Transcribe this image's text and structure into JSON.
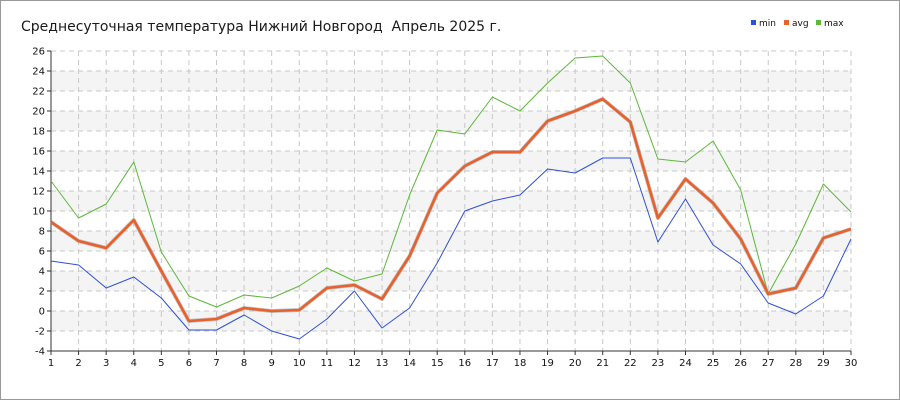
{
  "chart_data": {
    "type": "line",
    "title": "Среднесуточная температура Нижний Новгород  Апрель 2025 г.",
    "xlabel": "",
    "ylabel": "",
    "x": [
      1,
      2,
      3,
      4,
      5,
      6,
      7,
      8,
      9,
      10,
      11,
      12,
      13,
      14,
      15,
      16,
      17,
      18,
      19,
      20,
      21,
      22,
      23,
      24,
      25,
      26,
      27,
      28,
      29,
      30
    ],
    "ylim": [
      -4,
      26
    ],
    "yticks": [
      -4,
      -2,
      0,
      2,
      4,
      6,
      8,
      10,
      12,
      14,
      16,
      18,
      20,
      22,
      24,
      26
    ],
    "grid": true,
    "legend_position": "top-right",
    "series": [
      {
        "name": "min",
        "color": "#2f50d8",
        "values": [
          5.0,
          4.6,
          2.3,
          3.4,
          1.3,
          -1.9,
          -1.9,
          -0.4,
          -2.0,
          -2.8,
          -0.8,
          2.0,
          -1.7,
          0.3,
          4.8,
          10.0,
          11.0,
          11.6,
          14.2,
          13.8,
          15.3,
          15.3,
          6.9,
          11.2,
          6.6,
          4.7,
          0.8,
          -0.3,
          1.5,
          7.2
        ]
      },
      {
        "name": "avg",
        "color": "#e8602c",
        "values": [
          8.9,
          7.0,
          6.3,
          9.1,
          4.0,
          -1.0,
          -0.8,
          0.3,
          0.0,
          0.1,
          2.3,
          2.6,
          1.2,
          5.5,
          11.8,
          14.5,
          15.9,
          15.9,
          19.0,
          20.0,
          21.2,
          18.9,
          9.3,
          13.2,
          10.8,
          7.2,
          1.7,
          2.3,
          7.3,
          8.2
        ]
      },
      {
        "name": "max",
        "color": "#5cb83a",
        "values": [
          13.0,
          9.3,
          10.7,
          14.9,
          5.9,
          1.5,
          0.4,
          1.6,
          1.3,
          2.5,
          4.3,
          3.0,
          3.7,
          11.6,
          18.1,
          17.7,
          21.4,
          20.0,
          22.8,
          25.3,
          25.5,
          22.8,
          15.2,
          14.9,
          17.0,
          12.1,
          1.7,
          6.7,
          12.7,
          9.9
        ]
      }
    ]
  }
}
